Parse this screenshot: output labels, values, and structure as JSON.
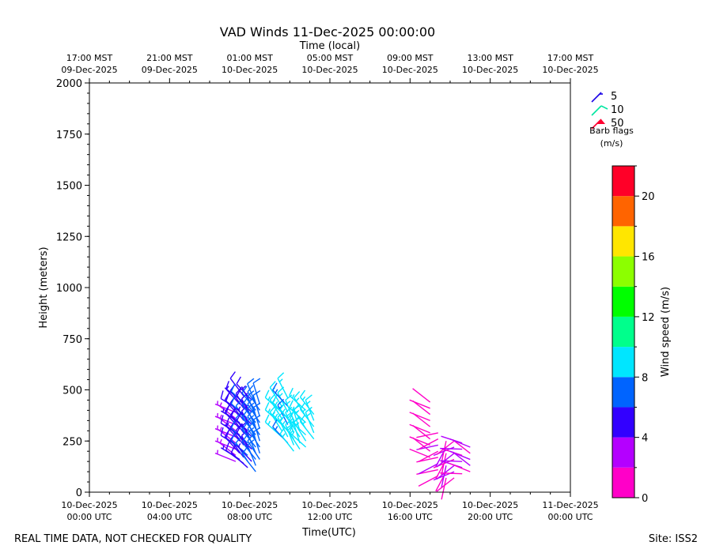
{
  "chart_data": {
    "type": "wind_barb",
    "title": "VAD Winds 11-Dec-2025 00:00:00",
    "top_axis_label": "Time (local)",
    "xlabel": "Time(UTC)",
    "ylabel": "Height (meters)",
    "xlim_hours": [
      0,
      24
    ],
    "ylim": [
      0,
      2000
    ],
    "y_ticks": [
      "0",
      "250",
      "500",
      "750",
      "1000",
      "1250",
      "1500",
      "1750",
      "2000"
    ],
    "bottom_ticks": [
      {
        "hour": 0,
        "line1": "10-Dec-2025",
        "line2": "00:00 UTC"
      },
      {
        "hour": 4,
        "line1": "10-Dec-2025",
        "line2": "04:00 UTC"
      },
      {
        "hour": 8,
        "line1": "10-Dec-2025",
        "line2": "08:00 UTC"
      },
      {
        "hour": 12,
        "line1": "10-Dec-2025",
        "line2": "12:00 UTC"
      },
      {
        "hour": 16,
        "line1": "10-Dec-2025",
        "line2": "16:00 UTC"
      },
      {
        "hour": 20,
        "line1": "10-Dec-2025",
        "line2": "20:00 UTC"
      },
      {
        "hour": 24,
        "line1": "11-Dec-2025",
        "line2": "00:00 UTC"
      }
    ],
    "top_ticks": [
      {
        "hour": 0,
        "line1": "17:00 MST",
        "line2": "09-Dec-2025"
      },
      {
        "hour": 4,
        "line1": "21:00 MST",
        "line2": "09-Dec-2025"
      },
      {
        "hour": 8,
        "line1": "01:00 MST",
        "line2": "10-Dec-2025"
      },
      {
        "hour": 12,
        "line1": "05:00 MST",
        "line2": "10-Dec-2025"
      },
      {
        "hour": 16,
        "line1": "09:00 MST",
        "line2": "10-Dec-2025"
      },
      {
        "hour": 20,
        "line1": "13:00 MST",
        "line2": "10-Dec-2025"
      },
      {
        "hour": 24,
        "line1": "17:00 MST",
        "line2": "10-Dec-2025"
      }
    ],
    "legend": {
      "items": [
        {
          "label": "5",
          "color": "#1a00e6"
        },
        {
          "label": "10",
          "color": "#00e6a0"
        },
        {
          "label": "50",
          "color": "#ff0030"
        }
      ],
      "caption_line1": "Barb flags",
      "caption_line2": "(m/s)"
    },
    "colorbar": {
      "label": "Wind speed (m/s)",
      "min": 0,
      "max": 22,
      "ticks": [
        "0",
        "4",
        "8",
        "12",
        "16",
        "20"
      ],
      "tick_values": [
        0,
        4,
        8,
        12,
        16,
        20
      ],
      "colors": [
        "#ff00c8",
        "#b400ff",
        "#3200ff",
        "#0064ff",
        "#00e6ff",
        "#00ff8c",
        "#00ff00",
        "#8cff00",
        "#ffe600",
        "#ff6400",
        "#ff0028"
      ]
    },
    "series": [
      {
        "hour": 7.3,
        "heights": [
          150,
          180,
          210,
          240,
          270,
          300,
          330,
          360,
          390
        ],
        "speed": 3.5,
        "dir": 300
      },
      {
        "hour": 7.5,
        "heights": [
          160,
          190,
          220,
          250,
          280,
          310,
          340,
          370,
          400,
          430
        ],
        "speed": 5,
        "dir": 310
      },
      {
        "hour": 7.7,
        "heights": [
          140,
          170,
          200,
          230,
          260,
          290,
          320,
          350,
          380,
          410,
          440,
          470
        ],
        "speed": 5.5,
        "dir": 315
      },
      {
        "hour": 7.9,
        "heights": [
          120,
          150,
          180,
          210,
          240,
          270,
          300,
          330,
          360,
          390,
          420
        ],
        "speed": 6,
        "dir": 320
      },
      {
        "hour": 8.1,
        "heights": [
          150,
          180,
          210,
          240,
          270,
          300,
          330,
          360,
          390,
          420,
          450
        ],
        "speed": 5,
        "dir": 325
      },
      {
        "hour": 8.3,
        "heights": [
          100,
          130,
          160,
          190,
          220,
          250,
          280,
          310,
          340,
          370,
          400,
          430
        ],
        "speed": 6.5,
        "dir": 330
      },
      {
        "hour": 8.5,
        "heights": [
          160,
          190,
          220,
          250,
          280,
          310,
          340,
          370,
          400,
          430
        ],
        "speed": 7,
        "dir": 335
      },
      {
        "hour": 9.6,
        "heights": [
          270,
          300,
          330,
          360,
          390,
          420
        ],
        "speed": 8.5,
        "dir": 320
      },
      {
        "hour": 9.9,
        "heights": [
          240,
          270,
          300,
          330,
          360,
          390,
          420,
          460
        ],
        "speed": 8.2,
        "dir": 325
      },
      {
        "hour": 10.2,
        "heights": [
          200,
          230,
          260,
          290,
          320,
          350
        ],
        "speed": 9,
        "dir": 330
      },
      {
        "hour": 10.5,
        "heights": [
          210,
          240,
          270,
          300
        ],
        "speed": 8.5,
        "dir": 335
      },
      {
        "hour": 10.8,
        "heights": [
          220,
          250,
          280,
          310,
          340,
          370,
          400
        ],
        "speed": 9,
        "dir": 320
      },
      {
        "hour": 11.2,
        "heights": [
          260,
          290,
          320,
          350,
          380
        ],
        "speed": 8.8,
        "dir": 330
      },
      {
        "hour": 17.0,
        "heights": [
          170,
          200,
          230,
          260,
          290,
          320,
          350,
          380,
          410,
          440
        ],
        "speed": 1.5,
        "dir": 300
      },
      {
        "hour": 17.4,
        "heights": [
          80,
          110,
          140,
          170,
          200,
          230,
          260,
          290
        ],
        "speed": 1.8,
        "dir": 250
      },
      {
        "hour": 17.8,
        "heights": [
          70,
          100,
          130,
          160,
          190,
          220,
          250
        ],
        "speed": 1.8,
        "dir": 200
      },
      {
        "hour": 18.2,
        "heights": [
          70,
          100,
          130,
          160,
          190,
          220,
          250
        ],
        "speed": 2,
        "dir": 240
      },
      {
        "hour": 18.6,
        "heights": [
          90,
          120,
          150,
          180,
          210,
          240
        ],
        "speed": 2,
        "dir": 280
      },
      {
        "hour": 19.0,
        "heights": [
          100,
          130,
          160,
          190,
          220
        ],
        "speed": 2,
        "dir": 300
      }
    ]
  },
  "footer": {
    "left_text": "REAL TIME DATA, NOT CHECKED FOR QUALITY",
    "right_text": "Site: ISS2"
  }
}
